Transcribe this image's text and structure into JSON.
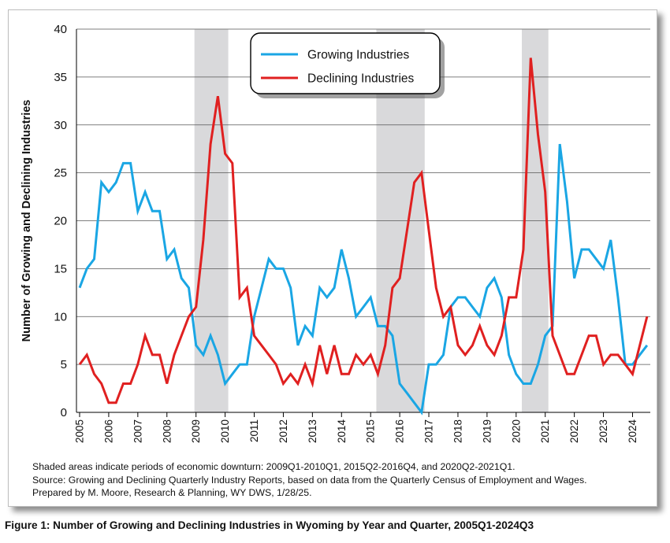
{
  "chart_data": {
    "type": "line",
    "title": "",
    "xlabel": "",
    "ylabel": "Number of Growing and Declining Industries",
    "ylim": [
      0,
      40
    ],
    "yticks": [
      0,
      5,
      10,
      15,
      20,
      25,
      30,
      35,
      40
    ],
    "x_tick_labels": [
      "2005",
      "2006",
      "2007",
      "2008",
      "2009",
      "2010",
      "2011",
      "2012",
      "2013",
      "2014",
      "2015",
      "2016",
      "2017",
      "2018",
      "2019",
      "2020",
      "2021",
      "2022",
      "2023",
      "2024"
    ],
    "x_start": "2005Q1",
    "x_end": "2024Q3",
    "grid": "horizontal",
    "legend_position": "top-center",
    "shaded_periods": [
      {
        "start": "2009Q1",
        "end": "2010Q1"
      },
      {
        "start": "2015Q2",
        "end": "2016Q4"
      },
      {
        "start": "2020Q2",
        "end": "2021Q1"
      }
    ],
    "shade_color": "#d9d9db",
    "series": [
      {
        "name": "Growing Industries",
        "color": "#1aa6e4",
        "values": [
          13,
          15,
          16,
          24,
          23,
          24,
          26,
          26,
          21,
          23,
          21,
          21,
          16,
          17,
          14,
          13,
          7,
          6,
          8,
          6,
          3,
          4,
          5,
          5,
          10,
          13,
          16,
          15,
          15,
          13,
          7,
          9,
          8,
          13,
          12,
          13,
          17,
          14,
          10,
          11,
          12,
          9,
          9,
          8,
          3,
          2,
          1,
          0,
          5,
          5,
          6,
          11,
          12,
          12,
          11,
          10,
          13,
          14,
          12,
          6,
          4,
          3,
          3,
          5,
          8,
          9,
          28,
          22,
          14,
          17,
          17,
          16,
          15,
          18,
          12,
          5,
          5,
          6,
          7
        ]
      },
      {
        "name": "Declining Industries",
        "color": "#e02020",
        "values": [
          5,
          6,
          4,
          3,
          1,
          1,
          3,
          3,
          5,
          8,
          6,
          6,
          3,
          6,
          8,
          10,
          11,
          18,
          28,
          33,
          27,
          26,
          12,
          13,
          8,
          7,
          6,
          5,
          3,
          4,
          3,
          5,
          3,
          7,
          4,
          7,
          4,
          4,
          6,
          5,
          6,
          4,
          7,
          13,
          14,
          19,
          24,
          25,
          19,
          13,
          10,
          11,
          7,
          6,
          7,
          9,
          7,
          6,
          8,
          12,
          12,
          17,
          37,
          29,
          23,
          8,
          6,
          4,
          4,
          6,
          8,
          8,
          5,
          6,
          6,
          5,
          4,
          7,
          10
        ]
      }
    ]
  },
  "notes": [
    "Shaded areas indicate periods of economic downturn: 2009Q1-2010Q1, 2015Q2-2016Q4, and 2020Q2-2021Q1.",
    "Source: Growing and Declining Quarterly Industry Reports, based on data from the Quarterly Census of Employment and Wages.",
    "Prepared by M. Moore, Research & Planning, WY DWS, 1/28/25."
  ],
  "figure_caption": "Figure 1: Number of Growing and Declining Industries in Wyoming by Year and Quarter, 2005Q1-2024Q3"
}
